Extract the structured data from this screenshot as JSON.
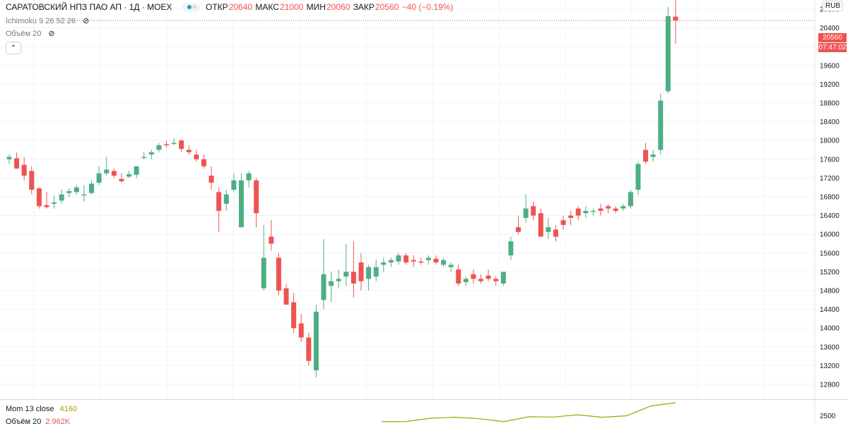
{
  "header": {
    "symbol_title": "САРАТОВСКИЙ НПЗ ПАО АП · 1Д · MOEX",
    "open_label": "ОТКР",
    "open_value": "20640",
    "high_label": "МАКС",
    "high_value": "21000",
    "low_label": "МИН",
    "low_value": "20060",
    "close_label": "ЗАКР",
    "close_value": "20560",
    "change": "−40 (−0.19%)",
    "currency": "RUB"
  },
  "indicators": {
    "ichimoku": "Ichimoku 9 26 52 26",
    "volume": "Объём 20",
    "momentum_label": "Mom 13 close",
    "momentum_value": "4160",
    "volume2_label": "Объём 20",
    "volume2_value": "2.962K"
  },
  "price_tags": {
    "last_price": "20560",
    "countdown": "07:47:02"
  },
  "colors": {
    "up": "#26a69a",
    "up_body": "#4caf84",
    "down": "#ef5350",
    "grid": "#f0f3fa",
    "momentum_line": "#a5a000"
  },
  "chart_data": {
    "type": "candlestick",
    "title": "САРАТОВСКИЙ НПЗ ПАО АП · 1Д · MOEX",
    "y_axis_side": "right",
    "ylim": [
      12500,
      21400
    ],
    "y_ticks": [
      "20800",
      "20400",
      "20000",
      "19600",
      "19200",
      "18800",
      "18400",
      "18000",
      "17600",
      "17200",
      "16800",
      "16400",
      "16000",
      "15600",
      "15200",
      "14800",
      "14400",
      "14000",
      "13600",
      "13200",
      "12800"
    ],
    "bottom_axis_tick": "2500",
    "candles": [
      {
        "o": 17600,
        "h": 17700,
        "l": 17500,
        "c": 17650
      },
      {
        "o": 17620,
        "h": 17750,
        "l": 17400,
        "c": 17400
      },
      {
        "o": 17480,
        "h": 17650,
        "l": 17150,
        "c": 17250
      },
      {
        "o": 17350,
        "h": 17450,
        "l": 16850,
        "c": 16950
      },
      {
        "o": 16980,
        "h": 17000,
        "l": 16550,
        "c": 16600
      },
      {
        "o": 16620,
        "h": 16900,
        "l": 16550,
        "c": 16580
      },
      {
        "o": 16650,
        "h": 16820,
        "l": 16550,
        "c": 16680
      },
      {
        "o": 16720,
        "h": 16950,
        "l": 16650,
        "c": 16850
      },
      {
        "o": 16880,
        "h": 16980,
        "l": 16800,
        "c": 16920
      },
      {
        "o": 16900,
        "h": 17050,
        "l": 16850,
        "c": 17000
      },
      {
        "o": 16830,
        "h": 17050,
        "l": 16700,
        "c": 16850
      },
      {
        "o": 16880,
        "h": 17150,
        "l": 16850,
        "c": 17080
      },
      {
        "o": 17100,
        "h": 17450,
        "l": 17050,
        "c": 17300
      },
      {
        "o": 17300,
        "h": 17650,
        "l": 17250,
        "c": 17380
      },
      {
        "o": 17350,
        "h": 17400,
        "l": 17200,
        "c": 17250
      },
      {
        "o": 17180,
        "h": 17300,
        "l": 17100,
        "c": 17130
      },
      {
        "o": 17230,
        "h": 17350,
        "l": 17200,
        "c": 17280
      },
      {
        "o": 17270,
        "h": 17450,
        "l": 17200,
        "c": 17450
      },
      {
        "o": 17650,
        "h": 17750,
        "l": 17600,
        "c": 17650
      },
      {
        "o": 17700,
        "h": 17800,
        "l": 17600,
        "c": 17750
      },
      {
        "o": 17800,
        "h": 17950,
        "l": 17750,
        "c": 17900
      },
      {
        "o": 17920,
        "h": 18000,
        "l": 17850,
        "c": 17900
      },
      {
        "o": 17950,
        "h": 18050,
        "l": 17900,
        "c": 17950
      },
      {
        "o": 18000,
        "h": 18020,
        "l": 17750,
        "c": 17820
      },
      {
        "o": 17800,
        "h": 17900,
        "l": 17700,
        "c": 17750
      },
      {
        "o": 17700,
        "h": 17800,
        "l": 17550,
        "c": 17600
      },
      {
        "o": 17600,
        "h": 17700,
        "l": 17400,
        "c": 17450
      },
      {
        "o": 17250,
        "h": 17450,
        "l": 16950,
        "c": 17100
      },
      {
        "o": 16900,
        "h": 17000,
        "l": 16050,
        "c": 16500
      },
      {
        "o": 16650,
        "h": 16950,
        "l": 16500,
        "c": 16850
      },
      {
        "o": 16950,
        "h": 17300,
        "l": 16900,
        "c": 17150
      },
      {
        "o": 16150,
        "h": 17300,
        "l": 16150,
        "c": 17150
      },
      {
        "o": 17150,
        "h": 17350,
        "l": 17000,
        "c": 17300
      },
      {
        "o": 17150,
        "h": 17200,
        "l": 16150,
        "c": 16450
      },
      {
        "o": 14850,
        "h": 16200,
        "l": 14800,
        "c": 15500
      },
      {
        "o": 15950,
        "h": 16300,
        "l": 15650,
        "c": 15800
      },
      {
        "o": 15500,
        "h": 15600,
        "l": 14700,
        "c": 14800
      },
      {
        "o": 14850,
        "h": 14950,
        "l": 14550,
        "c": 14500
      },
      {
        "o": 14550,
        "h": 14750,
        "l": 13900,
        "c": 14000
      },
      {
        "o": 14100,
        "h": 14300,
        "l": 13700,
        "c": 13800
      },
      {
        "o": 13800,
        "h": 13900,
        "l": 13200,
        "c": 13300
      },
      {
        "o": 13100,
        "h": 14500,
        "l": 12950,
        "c": 14350
      },
      {
        "o": 14600,
        "h": 15900,
        "l": 14400,
        "c": 15150
      },
      {
        "o": 14900,
        "h": 15200,
        "l": 14550,
        "c": 15000
      },
      {
        "o": 15000,
        "h": 15250,
        "l": 14850,
        "c": 15050
      },
      {
        "o": 15100,
        "h": 15800,
        "l": 14900,
        "c": 15200
      },
      {
        "o": 15200,
        "h": 15850,
        "l": 14650,
        "c": 14950
      },
      {
        "o": 15400,
        "h": 15600,
        "l": 14800,
        "c": 15000
      },
      {
        "o": 15050,
        "h": 15350,
        "l": 14800,
        "c": 15300
      },
      {
        "o": 15100,
        "h": 15450,
        "l": 15000,
        "c": 15300
      },
      {
        "o": 15350,
        "h": 15500,
        "l": 15200,
        "c": 15400
      },
      {
        "o": 15400,
        "h": 15500,
        "l": 15300,
        "c": 15450
      },
      {
        "o": 15420,
        "h": 15600,
        "l": 15350,
        "c": 15550
      },
      {
        "o": 15550,
        "h": 15600,
        "l": 15350,
        "c": 15400
      },
      {
        "o": 15450,
        "h": 15550,
        "l": 15300,
        "c": 15420
      },
      {
        "o": 15420,
        "h": 15500,
        "l": 15350,
        "c": 15400
      },
      {
        "o": 15450,
        "h": 15550,
        "l": 15350,
        "c": 15500
      },
      {
        "o": 15480,
        "h": 15550,
        "l": 15350,
        "c": 15400
      },
      {
        "o": 15350,
        "h": 15500,
        "l": 15300,
        "c": 15450
      },
      {
        "o": 15300,
        "h": 15400,
        "l": 15200,
        "c": 15350
      },
      {
        "o": 15250,
        "h": 15350,
        "l": 14900,
        "c": 14950
      },
      {
        "o": 14980,
        "h": 15100,
        "l": 14900,
        "c": 15050
      },
      {
        "o": 15150,
        "h": 15250,
        "l": 14950,
        "c": 15050
      },
      {
        "o": 15050,
        "h": 15150,
        "l": 14950,
        "c": 15000
      },
      {
        "o": 15120,
        "h": 15250,
        "l": 15000,
        "c": 15050
      },
      {
        "o": 15050,
        "h": 15100,
        "l": 14900,
        "c": 15000
      },
      {
        "o": 14950,
        "h": 15200,
        "l": 14900,
        "c": 15200
      },
      {
        "o": 15550,
        "h": 15950,
        "l": 15450,
        "c": 15850
      },
      {
        "o": 16150,
        "h": 16400,
        "l": 16000,
        "c": 16050
      },
      {
        "o": 16350,
        "h": 16850,
        "l": 16250,
        "c": 16550
      },
      {
        "o": 16600,
        "h": 16700,
        "l": 16300,
        "c": 16400
      },
      {
        "o": 16450,
        "h": 16550,
        "l": 15950,
        "c": 15950
      },
      {
        "o": 16050,
        "h": 16350,
        "l": 15900,
        "c": 16150
      },
      {
        "o": 16100,
        "h": 16200,
        "l": 15850,
        "c": 15950
      },
      {
        "o": 16300,
        "h": 16400,
        "l": 16100,
        "c": 16200
      },
      {
        "o": 16400,
        "h": 16500,
        "l": 16200,
        "c": 16350
      },
      {
        "o": 16550,
        "h": 16600,
        "l": 16300,
        "c": 16400
      },
      {
        "o": 16450,
        "h": 16600,
        "l": 16350,
        "c": 16500
      },
      {
        "o": 16500,
        "h": 16550,
        "l": 16400,
        "c": 16500
      },
      {
        "o": 16550,
        "h": 16650,
        "l": 16400,
        "c": 16500
      },
      {
        "o": 16600,
        "h": 16650,
        "l": 16450,
        "c": 16550
      },
      {
        "o": 16550,
        "h": 16600,
        "l": 16450,
        "c": 16500
      },
      {
        "o": 16550,
        "h": 16650,
        "l": 16500,
        "c": 16600
      },
      {
        "o": 16600,
        "h": 16950,
        "l": 16550,
        "c": 16900
      },
      {
        "o": 16950,
        "h": 17550,
        "l": 16850,
        "c": 17500
      },
      {
        "o": 17800,
        "h": 17950,
        "l": 17500,
        "c": 17550
      },
      {
        "o": 17650,
        "h": 17800,
        "l": 17550,
        "c": 17700
      },
      {
        "o": 17800,
        "h": 19000,
        "l": 17700,
        "c": 18850
      },
      {
        "o": 19050,
        "h": 20850,
        "l": 19000,
        "c": 20650
      },
      {
        "o": 20640,
        "h": 21000,
        "l": 20060,
        "c": 20560
      }
    ],
    "momentum": [
      300,
      350,
      1000,
      1200,
      900,
      300,
      1300,
      1250,
      1700,
      1200,
      1500,
      3500,
      4160
    ]
  }
}
